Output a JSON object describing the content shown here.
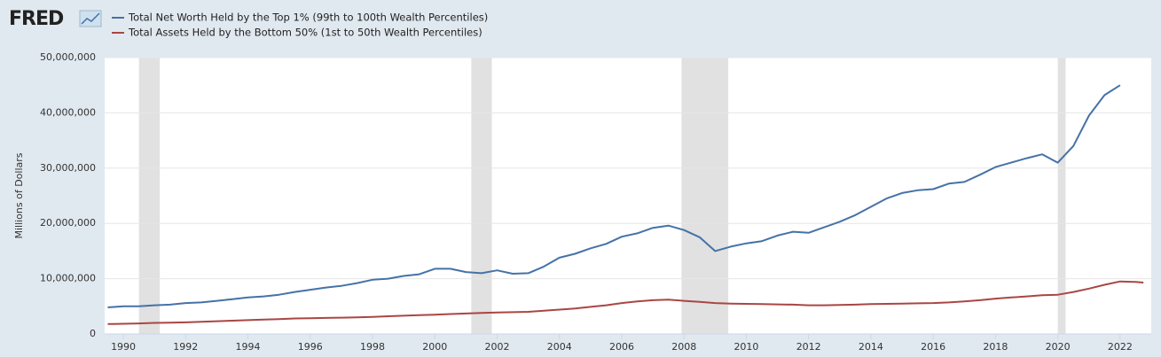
{
  "chart_data": {
    "type": "line",
    "logo": "FRED",
    "y_label": "Millions of Dollars",
    "x": [
      1989.5,
      1990,
      1990.5,
      1991,
      1991.5,
      1992,
      1992.5,
      1993,
      1993.5,
      1994,
      1994.5,
      1995,
      1995.5,
      1996,
      1996.5,
      1997,
      1997.5,
      1998,
      1998.5,
      1999,
      1999.5,
      2000,
      2000.5,
      2001,
      2001.5,
      2002,
      2002.5,
      2003,
      2003.5,
      2004,
      2004.5,
      2005,
      2005.5,
      2006,
      2006.5,
      2007,
      2007.5,
      2008,
      2008.5,
      2009,
      2009.5,
      2010,
      2010.5,
      2011,
      2011.5,
      2012,
      2012.5,
      2013,
      2013.5,
      2014,
      2014.5,
      2015,
      2015.5,
      2016,
      2016.5,
      2017,
      2017.5,
      2018,
      2018.5,
      2019,
      2019.5,
      2020,
      2020.5,
      2021,
      2021.5,
      2022,
      2022.5,
      2022.75
    ],
    "series": [
      {
        "name": "Total Net Worth Held by the Top 1% (99th to 100th Wealth Percentiles)",
        "color": "#4572a7",
        "values": [
          4800000,
          5000000,
          5000000,
          5200000,
          5300000,
          5600000,
          5700000,
          6000000,
          6300000,
          6600000,
          6800000,
          7100000,
          7600000,
          8000000,
          8400000,
          8700000,
          9200000,
          9800000,
          10000000,
          10500000,
          10800000,
          11800000,
          11800000,
          11200000,
          11000000,
          11500000,
          10900000,
          11000000,
          12200000,
          13800000,
          14500000,
          15500000,
          16300000,
          17600000,
          18200000,
          19200000,
          19600000,
          18800000,
          17500000,
          15000000,
          15800000,
          16400000,
          16800000,
          17800000,
          18500000,
          18300000,
          19300000,
          20300000,
          21500000,
          23000000,
          24500000,
          25500000,
          26000000,
          26200000,
          27200000,
          27500000,
          28800000,
          30200000,
          31000000,
          31800000,
          32500000,
          31000000,
          34000000,
          39500000,
          43200000,
          45000000,
          null,
          null
        ]
      },
      {
        "name": "Total Assets Held by the Bottom 50% (1st to 50th Wealth Percentiles)",
        "color": "#aa4643",
        "values": [
          1800000,
          1850000,
          1900000,
          2000000,
          2050000,
          2100000,
          2200000,
          2300000,
          2400000,
          2500000,
          2600000,
          2700000,
          2800000,
          2850000,
          2900000,
          2950000,
          3000000,
          3100000,
          3200000,
          3300000,
          3400000,
          3500000,
          3600000,
          3700000,
          3800000,
          3900000,
          3950000,
          4000000,
          4200000,
          4400000,
          4600000,
          4900000,
          5200000,
          5600000,
          5900000,
          6100000,
          6200000,
          6000000,
          5800000,
          5600000,
          5500000,
          5450000,
          5400000,
          5350000,
          5300000,
          5200000,
          5200000,
          5250000,
          5300000,
          5400000,
          5450000,
          5500000,
          5550000,
          5600000,
          5700000,
          5900000,
          6100000,
          6400000,
          6600000,
          6800000,
          7000000,
          7100000,
          7600000,
          8200000,
          8900000,
          9500000,
          9400000,
          9300000
        ]
      }
    ],
    "recessions": [
      [
        1990.5,
        1991.17
      ],
      [
        2001.17,
        2001.83
      ],
      [
        2007.92,
        2009.42
      ],
      [
        2020.0,
        2020.25
      ]
    ],
    "xlim": [
      1989.4,
      2023.0
    ],
    "xticks": [
      1990,
      1992,
      1994,
      1996,
      1998,
      2000,
      2002,
      2004,
      2006,
      2008,
      2010,
      2012,
      2014,
      2016,
      2018,
      2020,
      2022
    ],
    "ylim": [
      0,
      50000000
    ],
    "yticks": [
      0,
      {
        "value": 10000000,
        "label": "10,000,000"
      },
      {
        "value": 20000000,
        "label": "20,000,000"
      },
      {
        "value": 30000000,
        "label": "30,000,000"
      },
      {
        "value": 40000000,
        "label": "40,000,000"
      },
      {
        "value": 50000000,
        "label": "50,000,000"
      }
    ],
    "grid": true
  }
}
